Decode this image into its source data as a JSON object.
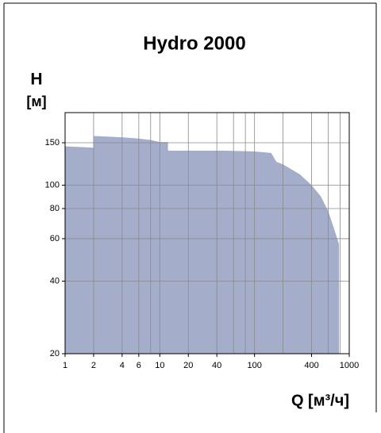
{
  "chart_data": {
    "type": "area",
    "title": "Hydro 2000",
    "y_label": "H",
    "y_unit": "[м]",
    "x_label": "Q [м³/ч]",
    "x": [
      1,
      2,
      2,
      4,
      6,
      8,
      10,
      12.2,
      12.2,
      50,
      100,
      150,
      170,
      200,
      300,
      400,
      500,
      600,
      700,
      780
    ],
    "series": [
      {
        "color": "#a4adc9",
        "values": [
          145,
          143,
          160,
          158,
          156,
          154,
          151,
          151,
          139,
          139,
          138,
          136,
          125,
          122,
          111,
          100,
          90,
          78,
          65,
          57
        ]
      }
    ],
    "xlog": true,
    "ylog": true,
    "xlim": [
      1,
      1000
    ],
    "ylim": [
      20,
      200
    ],
    "xticks": [
      1,
      2,
      4,
      6,
      10,
      20,
      40,
      100,
      400,
      1000
    ],
    "xgrid_extra": [
      8,
      60,
      80,
      200,
      600,
      800
    ],
    "yticks": [
      20,
      40,
      60,
      80,
      100,
      150
    ],
    "grid": true
  }
}
